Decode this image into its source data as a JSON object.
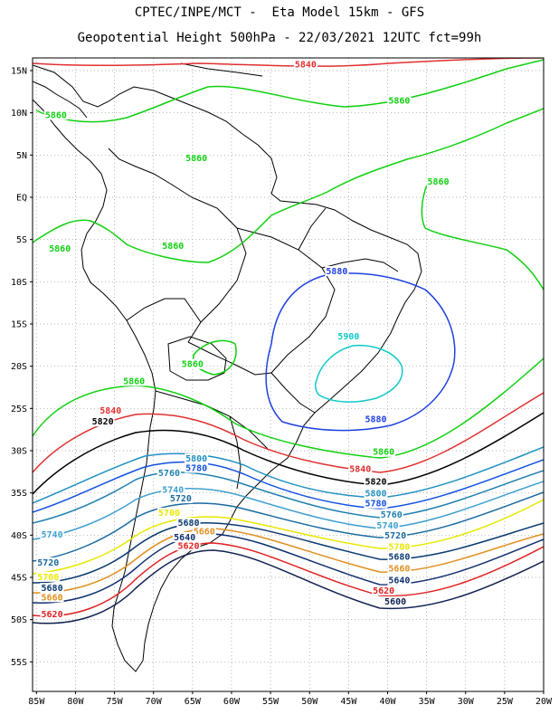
{
  "header": {
    "title_line1": "CPTEC/INPE/MCT -  Eta Model 15km - GFS",
    "title_line2": "Geopotential Height 500hPa - 22/03/2021 12UTC fct=99h"
  },
  "axes": {
    "lat_labels": [
      "15N",
      "10N",
      "5N",
      "EQ",
      "5S",
      "10S",
      "15S",
      "20S",
      "25S",
      "30S",
      "35S",
      "40S",
      "45S",
      "50S",
      "55S"
    ],
    "lon_labels": [
      "85W",
      "80W",
      "75W",
      "70W",
      "65W",
      "60W",
      "55W",
      "50W",
      "45W",
      "40W",
      "35W",
      "30W",
      "25W",
      "20W"
    ],
    "lat_range": [
      16.5,
      -58.5
    ],
    "lon_range": [
      -85.5,
      -20
    ],
    "grid": "dotted"
  },
  "contours": {
    "levels": [
      {
        "value": 5900,
        "color": "#10c8c8"
      },
      {
        "value": 5880,
        "color": "#2040e0"
      },
      {
        "value": 5860,
        "color": "#10d010"
      },
      {
        "value": 5840,
        "color": "#e03030"
      },
      {
        "value": 5820,
        "color": "#000000"
      },
      {
        "value": 5800,
        "color": "#2090c0"
      },
      {
        "value": 5780,
        "color": "#1050e0"
      },
      {
        "value": 5760,
        "color": "#2080b0"
      },
      {
        "value": 5740,
        "color": "#40a0d0"
      },
      {
        "value": 5720,
        "color": "#1a6aa0"
      },
      {
        "value": 5700,
        "color": "#e8e800"
      },
      {
        "value": 5680,
        "color": "#0a3a70"
      },
      {
        "value": 5660,
        "color": "#e09020"
      },
      {
        "value": 5640,
        "color": "#103070"
      },
      {
        "value": 5620,
        "color": "#e02020"
      },
      {
        "value": 5600,
        "color": "#102050"
      }
    ],
    "labels": [
      {
        "text": "5840",
        "color": "#e03030",
        "lon": -50.5,
        "lat": 15.5
      },
      {
        "text": "5860",
        "color": "#10d010",
        "lon": -38.5,
        "lat": 11.2
      },
      {
        "text": "5860",
        "color": "#10d010",
        "lon": -82.5,
        "lat": 9.5
      },
      {
        "text": "5860",
        "color": "#10d010",
        "lon": -64.5,
        "lat": 4.4
      },
      {
        "text": "5860",
        "color": "#10d010",
        "lon": -33.5,
        "lat": 1.6
      },
      {
        "text": "5860",
        "color": "#10d010",
        "lon": -82.0,
        "lat": -6.3
      },
      {
        "text": "5860",
        "color": "#10d010",
        "lon": -67.5,
        "lat": -6.0
      },
      {
        "text": "5880",
        "color": "#2040e0",
        "lon": -46.5,
        "lat": -9.0
      },
      {
        "text": "5900",
        "color": "#10c8c8",
        "lon": -45.0,
        "lat": -16.7
      },
      {
        "text": "5860",
        "color": "#10d010",
        "lon": -65.0,
        "lat": -20.0
      },
      {
        "text": "5860",
        "color": "#10d010",
        "lon": -72.5,
        "lat": -22.0
      },
      {
        "text": "5880",
        "color": "#2040e0",
        "lon": -41.5,
        "lat": -26.5
      },
      {
        "text": "5840",
        "color": "#e03030",
        "lon": -75.5,
        "lat": -25.5
      },
      {
        "text": "5820",
        "color": "#000000",
        "lon": -76.5,
        "lat": -26.8
      },
      {
        "text": "5860",
        "color": "#10d010",
        "lon": -40.5,
        "lat": -30.4
      },
      {
        "text": "5800",
        "color": "#2090c0",
        "lon": -64.5,
        "lat": -31.2
      },
      {
        "text": "5780",
        "color": "#1050e0",
        "lon": -64.5,
        "lat": -32.3
      },
      {
        "text": "5760",
        "color": "#2080b0",
        "lon": -68.0,
        "lat": -32.9
      },
      {
        "text": "5840",
        "color": "#e03030",
        "lon": -43.5,
        "lat": -32.4
      },
      {
        "text": "5820",
        "color": "#000000",
        "lon": -41.5,
        "lat": -33.9
      },
      {
        "text": "5740",
        "color": "#40a0d0",
        "lon": -67.5,
        "lat": -34.9
      },
      {
        "text": "5720",
        "color": "#1a6aa0",
        "lon": -66.5,
        "lat": -35.9
      },
      {
        "text": "5800",
        "color": "#2090c0",
        "lon": -41.5,
        "lat": -35.3
      },
      {
        "text": "5780",
        "color": "#1050e0",
        "lon": -41.5,
        "lat": -36.5
      },
      {
        "text": "5760",
        "color": "#2080b0",
        "lon": -39.5,
        "lat": -37.8
      },
      {
        "text": "5700",
        "color": "#e8e800",
        "lon": -68.0,
        "lat": -37.6
      },
      {
        "text": "5740",
        "color": "#40a0d0",
        "lon": -40.0,
        "lat": -39.1
      },
      {
        "text": "5680",
        "color": "#0a3a70",
        "lon": -65.5,
        "lat": -38.8
      },
      {
        "text": "5660",
        "color": "#e09020",
        "lon": -63.5,
        "lat": -39.8
      },
      {
        "text": "5720",
        "color": "#1a6aa0",
        "lon": -39.0,
        "lat": -40.3
      },
      {
        "text": "5640",
        "color": "#103070",
        "lon": -66.0,
        "lat": -40.5
      },
      {
        "text": "5620",
        "color": "#e02020",
        "lon": -65.5,
        "lat": -41.5
      },
      {
        "text": "5700",
        "color": "#e8e800",
        "lon": -38.5,
        "lat": -41.6
      },
      {
        "text": "5740",
        "color": "#40a0d0",
        "lon": -83.0,
        "lat": -40.2
      },
      {
        "text": "5680",
        "color": "#0a3a70",
        "lon": -38.5,
        "lat": -42.8
      },
      {
        "text": "5720",
        "color": "#1a6aa0",
        "lon": -83.5,
        "lat": -43.5
      },
      {
        "text": "5660",
        "color": "#e09020",
        "lon": -38.5,
        "lat": -44.2
      },
      {
        "text": "5700",
        "color": "#e8e800",
        "lon": -83.5,
        "lat": -45.2
      },
      {
        "text": "5640",
        "color": "#103070",
        "lon": -38.5,
        "lat": -45.6
      },
      {
        "text": "5680",
        "color": "#0a3a70",
        "lon": -83.0,
        "lat": -46.5
      },
      {
        "text": "5620",
        "color": "#e02020",
        "lon": -40.5,
        "lat": -46.8
      },
      {
        "text": "5660",
        "color": "#e09020",
        "lon": -83.0,
        "lat": -47.6
      },
      {
        "text": "5600",
        "color": "#102050",
        "lon": -39.0,
        "lat": -48.1
      },
      {
        "text": "5620",
        "color": "#e02020",
        "lon": -83.0,
        "lat": -49.6
      }
    ]
  }
}
